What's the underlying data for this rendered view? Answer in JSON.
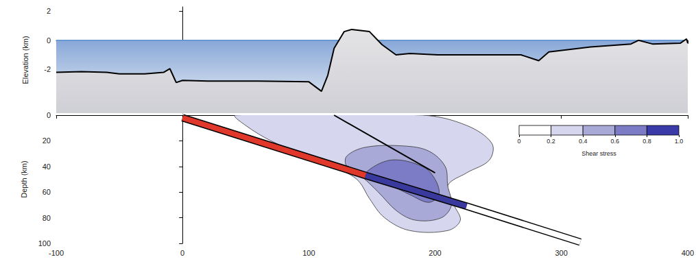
{
  "chart_data": [
    {
      "type": "line",
      "ylabel": "Elevation (km)",
      "x": [
        -100,
        -80,
        -60,
        -50,
        -30,
        -15,
        -10,
        -5,
        0,
        20,
        60,
        100,
        110,
        115,
        120,
        128,
        134,
        148,
        158,
        169,
        180,
        202,
        236,
        268,
        282,
        290,
        323,
        355,
        361,
        372,
        394,
        399,
        400
      ],
      "values": [
        -2.2,
        -2.15,
        -2.2,
        -2.3,
        -2.3,
        -2.2,
        -1.95,
        -2.9,
        -2.75,
        -2.8,
        -2.8,
        -2.85,
        -3.5,
        -2.4,
        -0.55,
        0.6,
        0.75,
        0.6,
        -0.3,
        -1.0,
        -0.9,
        -1.0,
        -1.0,
        -1.0,
        -1.4,
        -0.8,
        -0.45,
        -0.25,
        0.0,
        -0.25,
        -0.2,
        0.1,
        -0.2
      ],
      "color": "#000000",
      "sea_level": 0,
      "xlim": [
        -100,
        400
      ],
      "xticks": [
        -100,
        0,
        100,
        200,
        300,
        400
      ],
      "ylim": [
        -5,
        2.3
      ],
      "yticks": [
        -2,
        0,
        2
      ],
      "tick_labels": "y"
    },
    {
      "type": "cross_section",
      "ylabel": "Depth (km)",
      "xlim": [
        -100,
        400
      ],
      "xticks": [
        -100,
        0,
        100,
        200,
        300,
        400
      ],
      "ylim": [
        0,
        100
      ],
      "yticks": [
        0,
        20,
        40,
        60,
        80,
        100
      ],
      "shear_stress_regions": [
        {
          "level": [
            0.2,
            0.4
          ],
          "points": [
            [
              42,
              0
            ],
            [
              190,
              0
            ],
            [
              225,
              8
            ],
            [
              245,
              22
            ],
            [
              243,
              35
            ],
            [
              225,
              45
            ],
            [
              210,
              55
            ],
            [
              215,
              70
            ],
            [
              220,
              82
            ],
            [
              210,
              90
            ],
            [
              180,
              90
            ],
            [
              160,
              80
            ],
            [
              148,
              65
            ],
            [
              140,
              52
            ],
            [
              130,
              45
            ],
            [
              100,
              33
            ],
            [
              70,
              20
            ],
            [
              50,
              8
            ]
          ]
        },
        {
          "level": [
            0.4,
            0.6
          ],
          "points": [
            [
              130,
              32
            ],
            [
              145,
              25
            ],
            [
              175,
              24
            ],
            [
              195,
              28
            ],
            [
              208,
              40
            ],
            [
              210,
              55
            ],
            [
              213,
              70
            ],
            [
              205,
              80
            ],
            [
              185,
              82
            ],
            [
              170,
              75
            ],
            [
              155,
              60
            ],
            [
              142,
              48
            ],
            [
              130,
              40
            ]
          ]
        },
        {
          "level": [
            0.6,
            0.8
          ],
          "points": [
            [
              145,
              45
            ],
            [
              165,
              35
            ],
            [
              190,
              40
            ],
            [
              200,
              50
            ],
            [
              203,
              62
            ],
            [
              195,
              68
            ],
            [
              180,
              62
            ],
            [
              165,
              55
            ],
            [
              150,
              50
            ]
          ]
        }
      ],
      "slab": [
        {
          "color": "#e0392c",
          "points": [
            [
              0,
              2
            ],
            [
              145,
              47
            ]
          ]
        },
        {
          "color": "#3a3a9e",
          "points": [
            [
              145,
              47
            ],
            [
              225,
              71
            ]
          ]
        },
        {
          "color": "#ffffff",
          "points": [
            [
              225,
              71
            ],
            [
              315,
              99
            ]
          ]
        }
      ],
      "fault": {
        "color": "#000000",
        "points": [
          [
            120,
            0
          ],
          [
            200,
            45
          ]
        ]
      },
      "colorbar": {
        "title": "Shear stress",
        "range": [
          0,
          1
        ],
        "ticks": [
          0,
          0.2,
          0.4,
          0.6,
          0.8,
          {
            "value": 1,
            "label": "1.0"
          }
        ],
        "colors": [
          "#ffffff",
          "#d6d6ee",
          "#a9a9d8",
          "#7c7cc6",
          "#3a3aa8"
        ]
      }
    }
  ]
}
